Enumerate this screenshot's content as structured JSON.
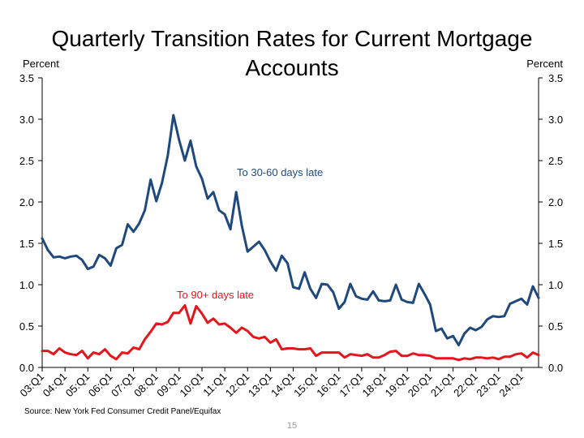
{
  "chart_data": {
    "type": "line",
    "title": "Quarterly Transition Rates for Current Mortgage Accounts",
    "ylabel_left": "Percent",
    "ylabel_right": "Percent",
    "ylim": [
      0,
      3.5
    ],
    "yticks": [
      "0.0",
      "0.5",
      "1.0",
      "1.5",
      "2.0",
      "2.5",
      "3.0",
      "3.5"
    ],
    "ytick_values": [
      0,
      0.5,
      1.0,
      1.5,
      2.0,
      2.5,
      3.0,
      3.5
    ],
    "xtick_labels": [
      "03:Q1",
      "04:Q1",
      "05:Q1",
      "06:Q1",
      "07:Q1",
      "08:Q1",
      "09:Q1",
      "10:Q1",
      "11:Q1",
      "12:Q1",
      "13:Q1",
      "14:Q1",
      "15:Q1",
      "16:Q1",
      "17:Q1",
      "18:Q1",
      "19:Q1",
      "20:Q1",
      "21:Q1",
      "22:Q1",
      "23:Q1",
      "24:Q1"
    ],
    "grid": false,
    "series": [
      {
        "name": "To 30-60 days late",
        "color": "#1F497D",
        "values": [
          1.56,
          1.42,
          1.33,
          1.34,
          1.32,
          1.34,
          1.35,
          1.3,
          1.19,
          1.22,
          1.36,
          1.32,
          1.23,
          1.44,
          1.48,
          1.73,
          1.64,
          1.74,
          1.9,
          2.27,
          2.01,
          2.23,
          2.56,
          3.05,
          2.75,
          2.5,
          2.74,
          2.43,
          2.28,
          2.04,
          2.12,
          1.9,
          1.85,
          1.67,
          2.12,
          1.71,
          1.4,
          1.46,
          1.52,
          1.42,
          1.28,
          1.17,
          1.35,
          1.26,
          0.97,
          0.95,
          1.15,
          0.95,
          0.84,
          1.01,
          1.0,
          0.91,
          0.71,
          0.79,
          1.01,
          0.86,
          0.83,
          0.82,
          0.92,
          0.81,
          0.8,
          0.81,
          1.0,
          0.82,
          0.79,
          0.78,
          1.01,
          0.89,
          0.76,
          0.44,
          0.47,
          0.35,
          0.38,
          0.27,
          0.41,
          0.48,
          0.45,
          0.49,
          0.58,
          0.62,
          0.61,
          0.62,
          0.77,
          0.8,
          0.83,
          0.76,
          0.98,
          0.84
        ]
      },
      {
        "name": "To 90+ days late",
        "color": "#E8141C",
        "values": [
          0.2,
          0.2,
          0.16,
          0.23,
          0.18,
          0.16,
          0.15,
          0.2,
          0.11,
          0.18,
          0.16,
          0.22,
          0.14,
          0.1,
          0.18,
          0.17,
          0.24,
          0.22,
          0.34,
          0.43,
          0.53,
          0.52,
          0.55,
          0.66,
          0.66,
          0.75,
          0.53,
          0.74,
          0.65,
          0.54,
          0.59,
          0.52,
          0.53,
          0.48,
          0.42,
          0.48,
          0.44,
          0.37,
          0.35,
          0.37,
          0.3,
          0.34,
          0.22,
          0.23,
          0.23,
          0.22,
          0.22,
          0.23,
          0.14,
          0.18,
          0.18,
          0.18,
          0.18,
          0.12,
          0.16,
          0.15,
          0.14,
          0.16,
          0.12,
          0.12,
          0.15,
          0.19,
          0.2,
          0.14,
          0.14,
          0.17,
          0.15,
          0.15,
          0.14,
          0.11,
          0.11,
          0.11,
          0.11,
          0.09,
          0.11,
          0.1,
          0.12,
          0.12,
          0.11,
          0.12,
          0.1,
          0.13,
          0.13,
          0.16,
          0.17,
          0.12,
          0.18,
          0.15
        ]
      }
    ],
    "annotations": [
      "To 30-60 days late",
      "To 90+ days late"
    ]
  },
  "footer": {
    "source": "Source: New York Fed Consumer Credit Panel/Equifax",
    "page_number": "15"
  }
}
